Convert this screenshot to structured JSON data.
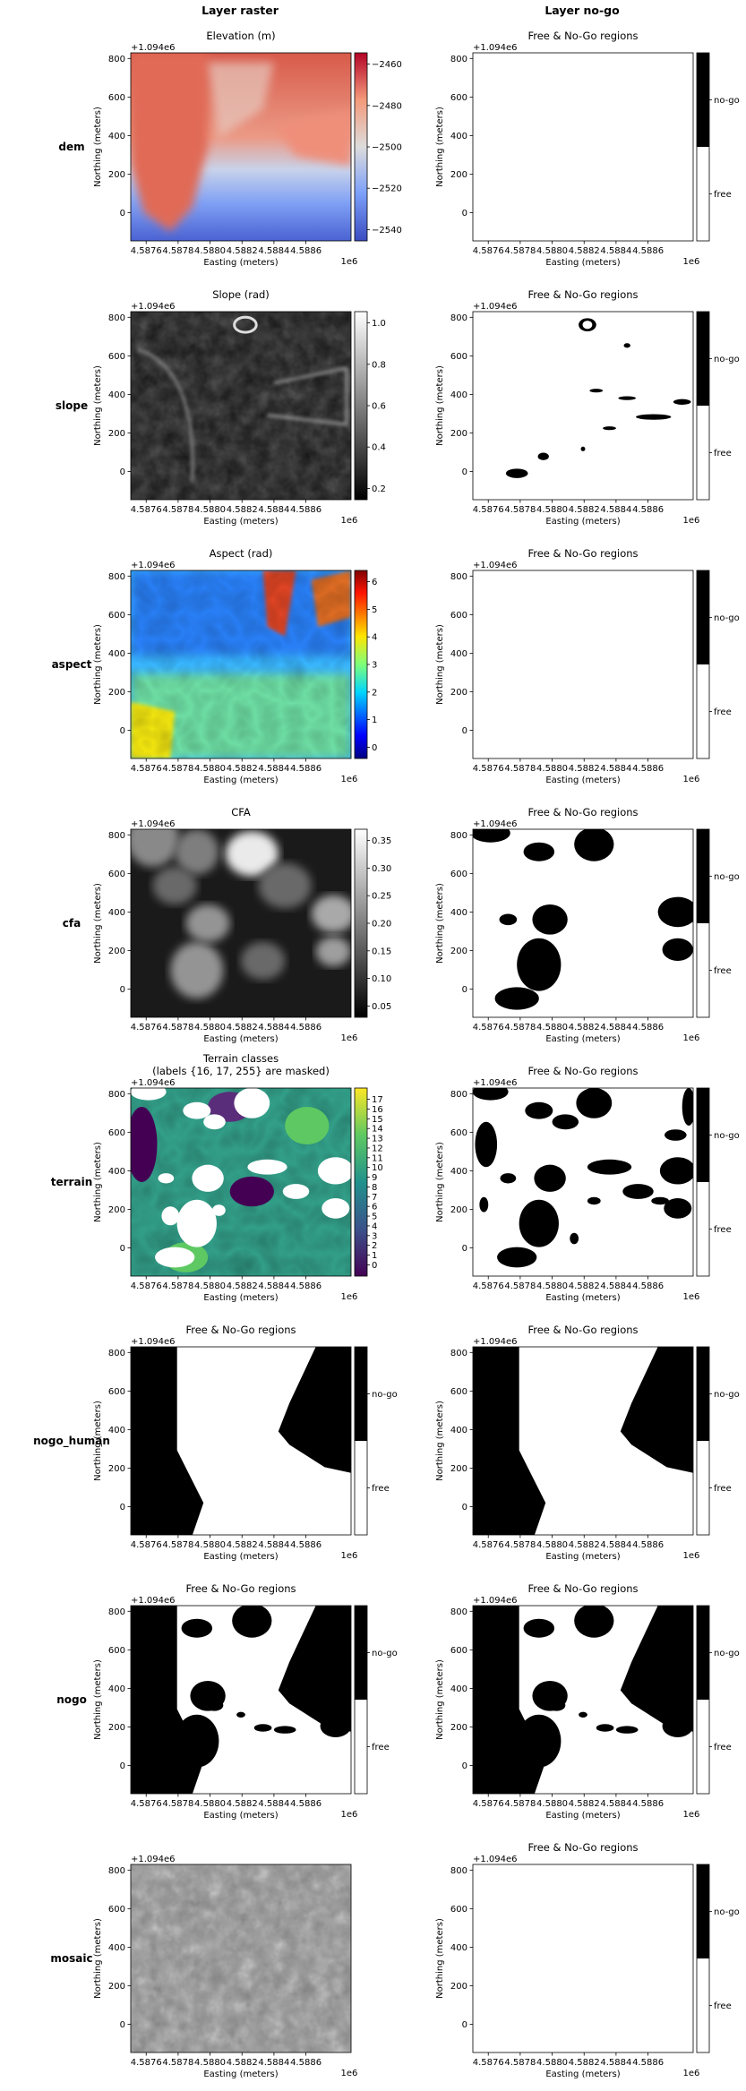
{
  "columns": {
    "raster": "Layer raster",
    "nogo": "Layer no-go"
  },
  "axes_common": {
    "xlabel": "Easting (meters)",
    "ylabel": "Northing (meters)",
    "x_ticks": [
      "4.5876",
      "4.5878",
      "4.5880",
      "4.5882",
      "4.5884",
      "4.5886"
    ],
    "x_multiplier": "1e6",
    "y_ticks": [
      "800",
      "600",
      "400",
      "200",
      "0"
    ],
    "y_offset": "+1.094e6",
    "x_range_easting": [
      4587430,
      4586630
    ],
    "y_range_northing": [
      1093830,
      1094840
    ]
  },
  "nogo_colorbar_labels": [
    "no-go",
    "free"
  ],
  "nogo_title": "Free & No-Go regions",
  "colors": {
    "nogo": "#000000",
    "free": "#ffffff",
    "dem_colormap": "coolwarm",
    "aspect_colormap": "jet",
    "terrain_colormap": "viridis"
  },
  "rows": [
    {
      "name": "dem",
      "raster": {
        "title": "Elevation (m)",
        "cmap": "coolwarm",
        "colorbar_ticks": [
          "−2460",
          "−2480",
          "−2500",
          "−2520",
          "−2540"
        ],
        "value_range": [
          -2545,
          -2450
        ]
      },
      "nogo": {
        "title": "Free & No-Go regions",
        "content": "all free"
      }
    },
    {
      "name": "slope",
      "raster": {
        "title": "Slope (rad)",
        "cmap": "gray",
        "colorbar_ticks": [
          "1.0",
          "0.8",
          "0.6",
          "0.4",
          "0.2"
        ],
        "value_range": [
          0.0,
          1.1
        ]
      },
      "nogo": {
        "title": "Free & No-Go regions",
        "content": "scattered small no-go patches"
      }
    },
    {
      "name": "aspect",
      "raster": {
        "title": "Aspect (rad)",
        "cmap": "jet",
        "colorbar_ticks": [
          "6",
          "5",
          "4",
          "3",
          "2",
          "1",
          "0"
        ],
        "value_range": [
          0,
          6.28
        ]
      },
      "nogo": {
        "title": "Free & No-Go regions",
        "content": "all free"
      }
    },
    {
      "name": "cfa",
      "raster": {
        "title": "CFA",
        "cmap": "gray",
        "colorbar_ticks": [
          "0.35",
          "0.30",
          "0.25",
          "0.20",
          "0.15",
          "0.10",
          "0.05"
        ],
        "value_range": [
          0.05,
          0.37
        ]
      },
      "nogo": {
        "title": "Free & No-Go regions",
        "content": "blob no-go regions"
      }
    },
    {
      "name": "terrain",
      "raster": {
        "title": "Terrain classes",
        "subtitle": "(labels {16, 17, 255} are masked)",
        "cmap": "viridis",
        "colorbar_ticks": [
          "17",
          "16",
          "15",
          "14",
          "13",
          "12",
          "11",
          "10",
          "9",
          "8",
          "7",
          "6",
          "5",
          "4",
          "3",
          "2",
          "1",
          "0"
        ],
        "value_range": [
          -0.5,
          17.5
        ]
      },
      "nogo": {
        "title": "Free & No-Go regions",
        "content": "masked-terrain no-go regions"
      }
    },
    {
      "name": "nogo_human",
      "raster": {
        "title": "Free & No-Go regions",
        "cmap": "binary",
        "colorbar_labels": [
          "no-go",
          "free"
        ]
      },
      "nogo": {
        "title": "Free & No-Go regions",
        "content": "human polygons"
      }
    },
    {
      "name": "nogo",
      "raster": {
        "title": "Free & No-Go regions",
        "cmap": "binary",
        "colorbar_labels": [
          "no-go",
          "free"
        ]
      },
      "nogo": {
        "title": "Free & No-Go regions",
        "content": "union of all no-go layers"
      }
    },
    {
      "name": "mosaic",
      "raster": {
        "title": "",
        "cmap": "gray",
        "no_colorbar": true
      },
      "nogo": {
        "title": "Free & No-Go regions",
        "content": "all free"
      }
    }
  ]
}
